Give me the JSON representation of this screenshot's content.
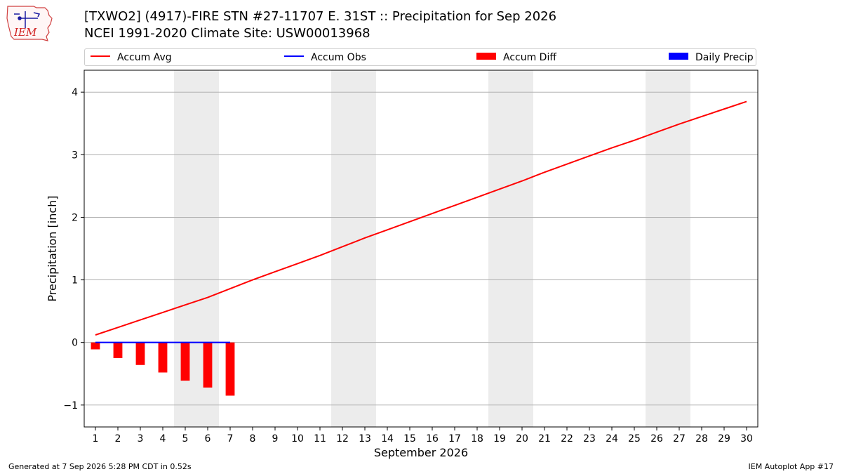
{
  "header": {
    "logo_text": "IEM",
    "title_line1": "[TXWO2] (4917)-FIRE STN #27-11707 E. 31ST :: Precipitation for Sep 2026",
    "title_line2": "NCEI 1991-2020 Climate Site: USW00013968"
  },
  "legend": {
    "items": [
      {
        "label": "Accum Avg",
        "color": "#ff0000",
        "kind": "line"
      },
      {
        "label": "Accum Obs",
        "color": "#0000ff",
        "kind": "line"
      },
      {
        "label": "Accum Diff",
        "color": "#ff0000",
        "kind": "box"
      },
      {
        "label": "Daily Precip",
        "color": "#0000ff",
        "kind": "box"
      }
    ]
  },
  "footer": {
    "generated": "Generated at 7 Sep 2026 5:28 PM CDT in 0.52s",
    "app": "IEM Autoplot App #17"
  },
  "chart_data": {
    "type": "line",
    "title": "[TXWO2] (4917)-FIRE STN #27-11707 E. 31ST :: Precipitation for Sep 2026",
    "subtitle": "NCEI 1991-2020 Climate Site: USW00013968",
    "xlabel": "September 2026",
    "ylabel": "Precipitation [inch]",
    "x": [
      1,
      2,
      3,
      4,
      5,
      6,
      7,
      8,
      9,
      10,
      11,
      12,
      13,
      14,
      15,
      16,
      17,
      18,
      19,
      20,
      21,
      22,
      23,
      24,
      25,
      26,
      27,
      28,
      29,
      30
    ],
    "xlim": [
      0.5,
      30.5
    ],
    "ylim": [
      -1.35,
      4.35
    ],
    "yticks": [
      -1,
      0,
      1,
      2,
      3,
      4
    ],
    "ytick_labels": [
      "−1",
      "0",
      "1",
      "2",
      "3",
      "4"
    ],
    "grid": "y",
    "legend_position": "top",
    "weekend_shading": [
      [
        4.5,
        6.5
      ],
      [
        11.5,
        13.5
      ],
      [
        18.5,
        20.5
      ],
      [
        25.5,
        27.5
      ]
    ],
    "series": [
      {
        "name": "Accum Avg",
        "type": "line",
        "color": "#ff0000",
        "x": [
          1,
          2,
          3,
          4,
          5,
          6,
          7,
          8,
          9,
          10,
          11,
          12,
          13,
          14,
          15,
          16,
          17,
          18,
          19,
          20,
          21,
          22,
          23,
          24,
          25,
          26,
          27,
          28,
          29,
          30
        ],
        "values": [
          0.12,
          0.24,
          0.36,
          0.48,
          0.6,
          0.72,
          0.86,
          1.0,
          1.13,
          1.26,
          1.39,
          1.53,
          1.67,
          1.8,
          1.93,
          2.06,
          2.19,
          2.32,
          2.45,
          2.58,
          2.72,
          2.85,
          2.98,
          3.11,
          3.23,
          3.36,
          3.49,
          3.61,
          3.73,
          3.85
        ]
      },
      {
        "name": "Accum Obs",
        "type": "line",
        "color": "#0000ff",
        "x": [
          1,
          2,
          3,
          4,
          5,
          6,
          7
        ],
        "values": [
          0,
          0,
          0,
          0,
          0,
          0,
          0
        ]
      },
      {
        "name": "Accum Diff",
        "type": "bar",
        "color": "#ff0000",
        "x": [
          1,
          2,
          3,
          4,
          5,
          6,
          7
        ],
        "values": [
          -0.11,
          -0.25,
          -0.36,
          -0.48,
          -0.61,
          -0.72,
          -0.85
        ]
      },
      {
        "name": "Daily Precip",
        "type": "bar",
        "color": "#0000ff",
        "x": [
          1,
          2,
          3,
          4,
          5,
          6,
          7
        ],
        "values": [
          0,
          0,
          0,
          0,
          0,
          0,
          0
        ]
      }
    ]
  }
}
